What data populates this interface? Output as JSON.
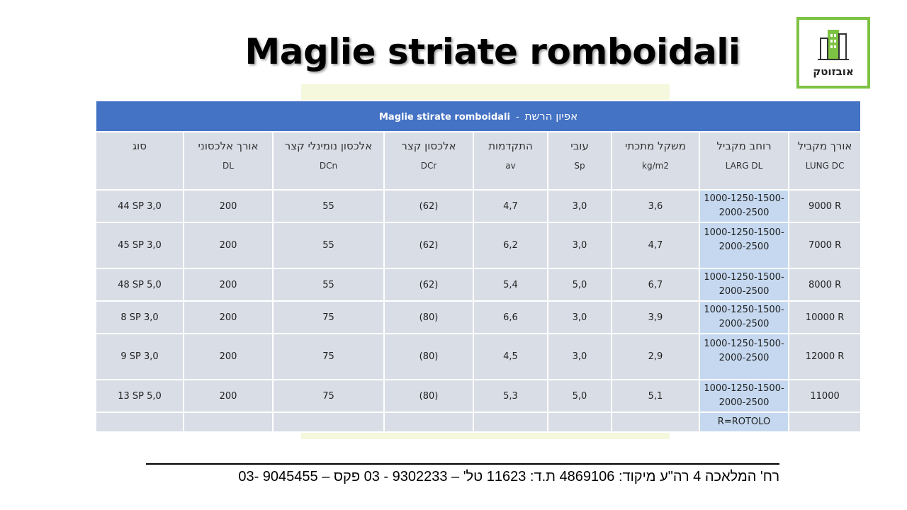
{
  "page": {
    "title": "Maglie striate romboidali"
  },
  "logo": {
    "text": "אובזוטק",
    "icon": "building-logo-icon",
    "accent_color": "#7dc242"
  },
  "table": {
    "title_italian": "Maglie stirate romboidali",
    "title_separator": "-",
    "title_hebrew": "אפיון הרשת",
    "header_color": "#4472c4",
    "columns": [
      {
        "he": "סוג",
        "abbr": ""
      },
      {
        "he": "אורך אלכסוני",
        "abbr": "DL"
      },
      {
        "he": "אלכסון נומינלי קצר",
        "abbr": "DCn"
      },
      {
        "he": "אלכסון קצר",
        "abbr": "DCr"
      },
      {
        "he": "התקדמות",
        "abbr": "av"
      },
      {
        "he": "עובי",
        "abbr": "Sp"
      },
      {
        "he": "משקל מתכתי",
        "abbr": "kg/m2"
      },
      {
        "he": "רוחב מקביל",
        "abbr": "LARG DL"
      },
      {
        "he": "אורך מקביל",
        "abbr": "LUNG DC"
      }
    ],
    "rows": [
      {
        "type": "44 SP 3,0",
        "dl": "200",
        "dcn": "55",
        "dcr": "(62)",
        "av": "4,7",
        "sp": "3,0",
        "kg": "3,6",
        "larg": "1000-1250-1500-2000-2500",
        "lung": "9000 R"
      },
      {
        "type": "45 SP 3,0",
        "dl": "200",
        "dcn": "55",
        "dcr": "(62)",
        "av": "6,2",
        "sp": "3,0",
        "kg": "4,7",
        "larg": "1000-1250-1500-2000-2500",
        "lung": "7000 R"
      },
      {
        "type": "48 SP 5,0",
        "dl": "200",
        "dcn": "55",
        "dcr": "(62)",
        "av": "5,4",
        "sp": "5,0",
        "kg": "6,7",
        "larg": "1000-1250-1500-2000-2500",
        "lung": "8000 R"
      },
      {
        "type": "8 SP 3,0",
        "dl": "200",
        "dcn": "75",
        "dcr": "(80)",
        "av": "6,6",
        "sp": "3,0",
        "kg": "3,9",
        "larg": "1000-1250-1500-2000-2500",
        "lung": "10000 R"
      },
      {
        "type": "9 SP 3,0",
        "dl": "200",
        "dcn": "75",
        "dcr": "(80)",
        "av": "4,5",
        "sp": "3,0",
        "kg": "2,9",
        "larg": "1000-1250-1500-2000-2500",
        "lung": "12000 R"
      },
      {
        "type": "13 SP 5,0",
        "dl": "200",
        "dcn": "75",
        "dcr": "(80)",
        "av": "5,3",
        "sp": "5,0",
        "kg": "5,1",
        "larg": "1000-1250-1500-2000-2500",
        "lung": "11000"
      }
    ],
    "note": "R=ROTOLO"
  },
  "footer": {
    "text": "רח' המלאכה 4 רה\"ע מיקוד: 4869106 ת.ד: 11623 טל' – 9302233 - 03   פקס – 9045455 -03"
  }
}
